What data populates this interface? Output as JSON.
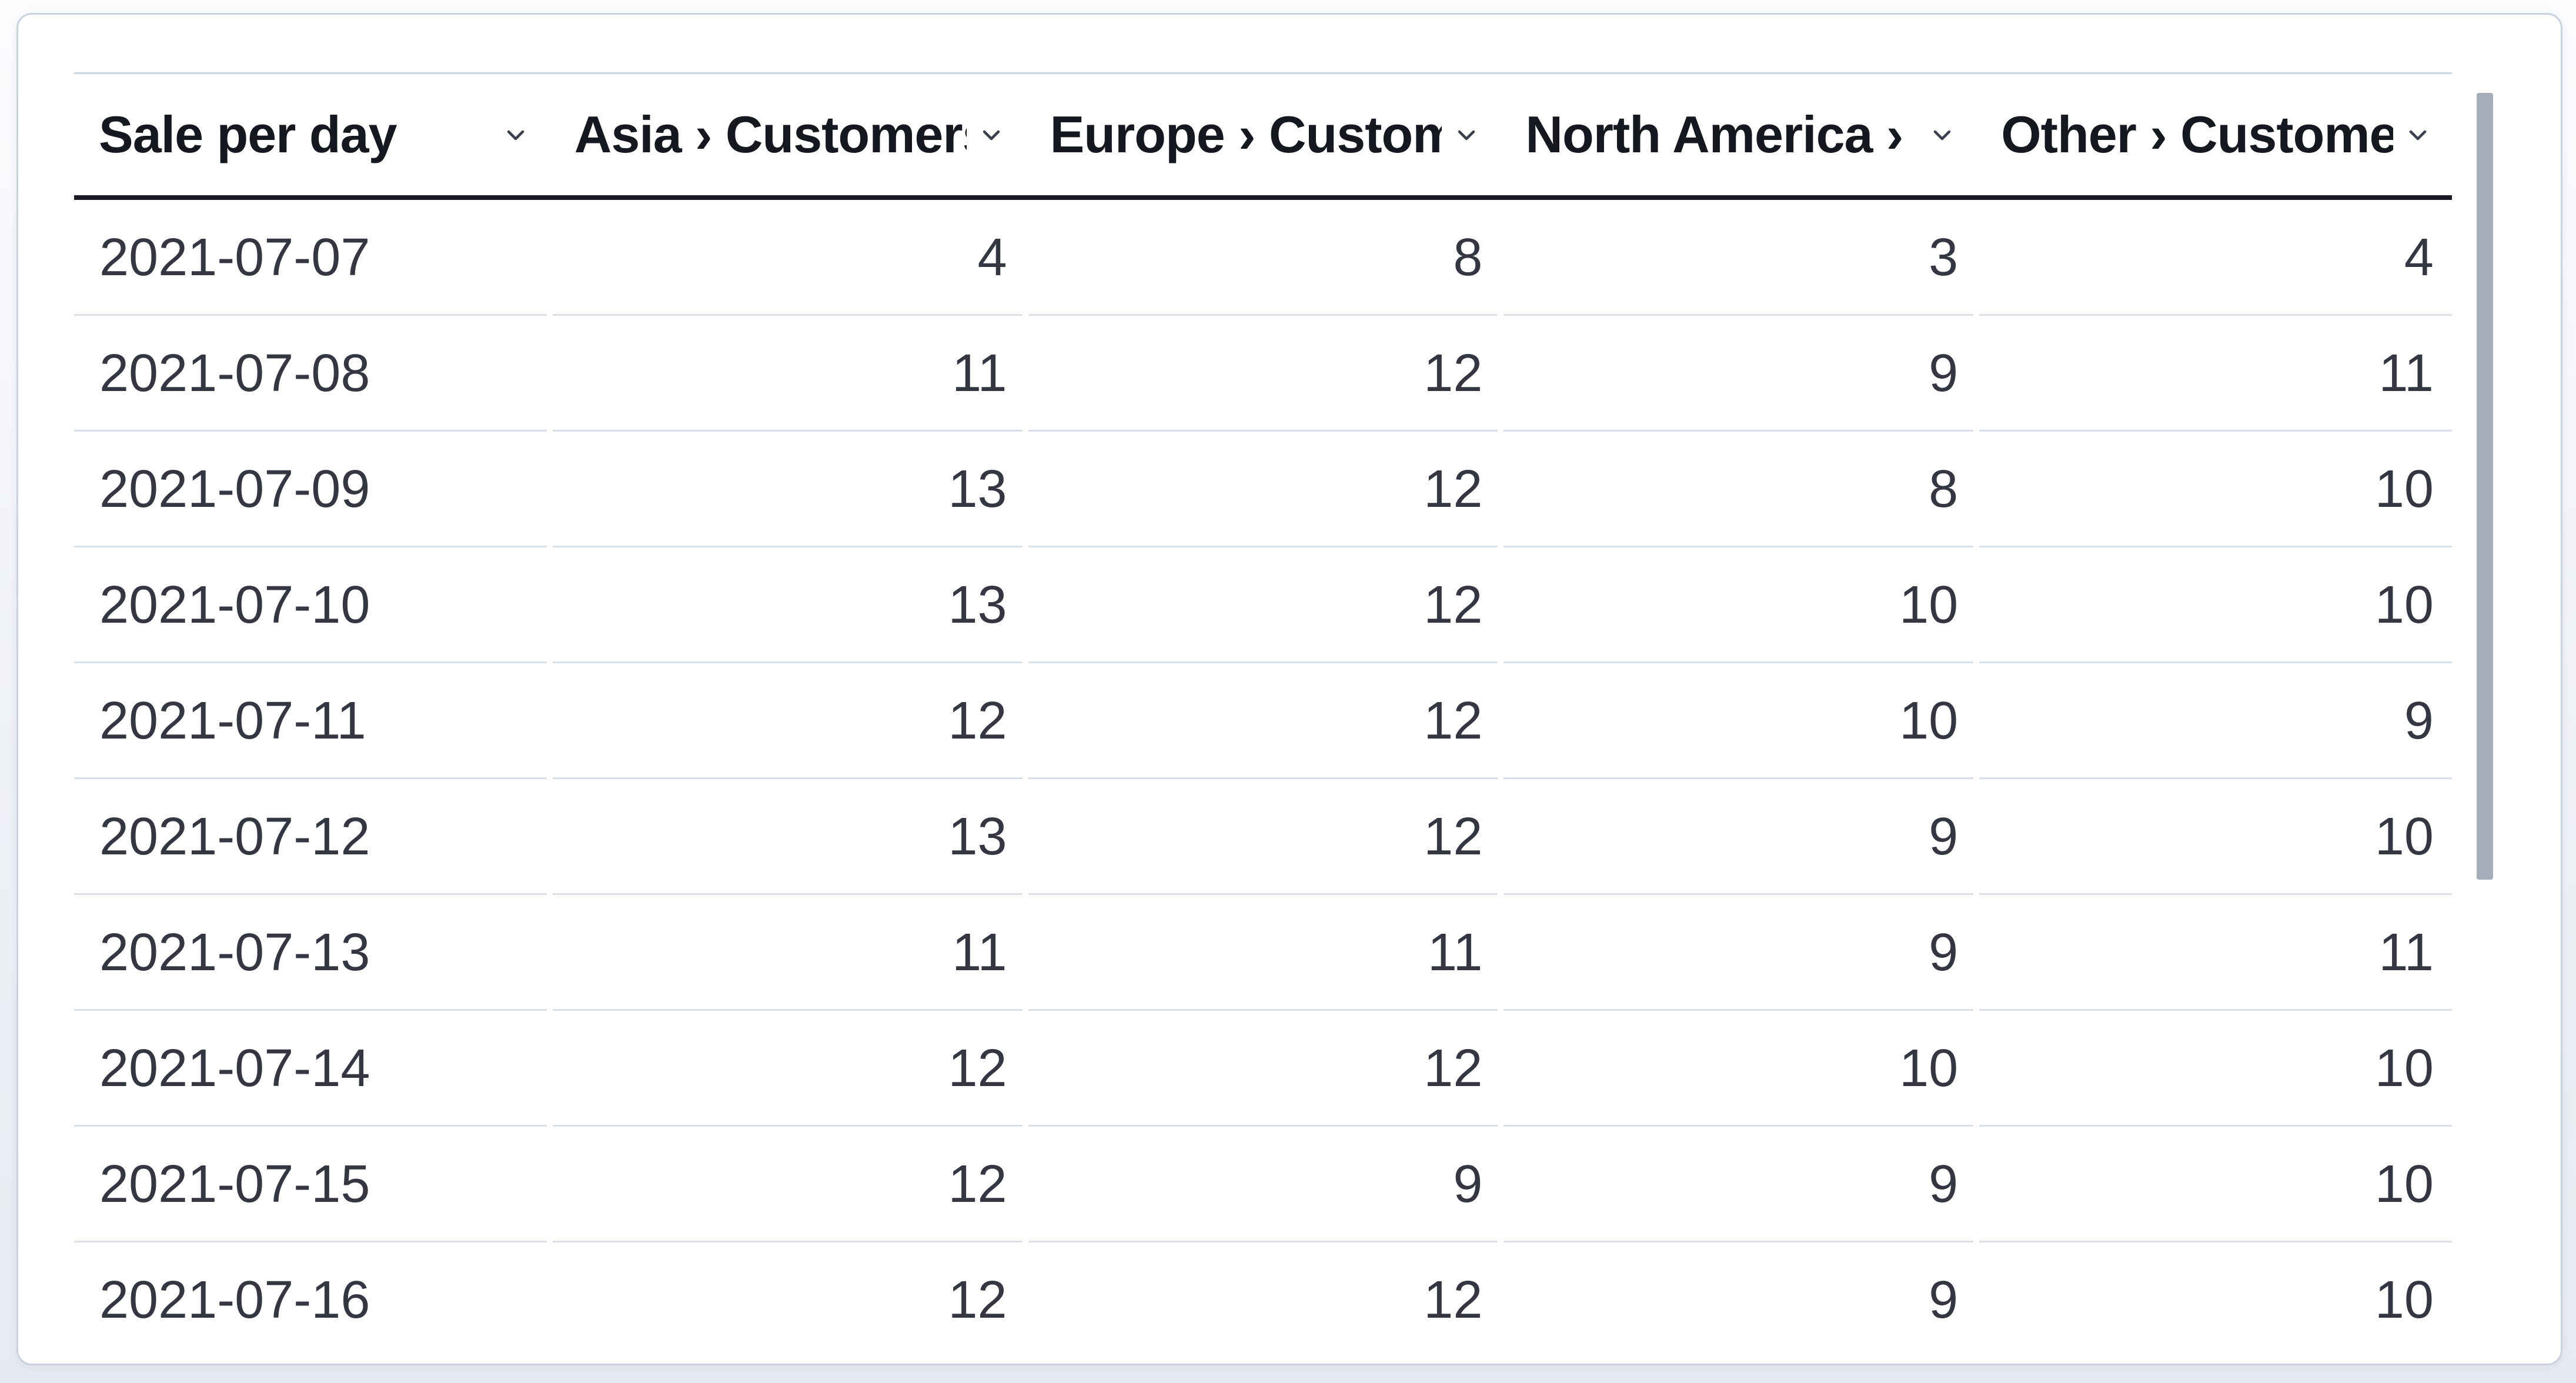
{
  "panel": {
    "kind": "data-table"
  },
  "table": {
    "columns": [
      {
        "label": "Sale per day",
        "align": "left"
      },
      {
        "label": "Asia › Customers",
        "align": "right"
      },
      {
        "label": "Europe › Customers",
        "align": "right"
      },
      {
        "label": "North America › Customers",
        "align": "right"
      },
      {
        "label": "Other › Customers",
        "align": "right"
      }
    ],
    "rows": [
      [
        "2021-07-07",
        "4",
        "8",
        "3",
        "4"
      ],
      [
        "2021-07-08",
        "11",
        "12",
        "9",
        "11"
      ],
      [
        "2021-07-09",
        "13",
        "12",
        "8",
        "10"
      ],
      [
        "2021-07-10",
        "13",
        "12",
        "10",
        "10"
      ],
      [
        "2021-07-11",
        "12",
        "12",
        "10",
        "9"
      ],
      [
        "2021-07-12",
        "13",
        "12",
        "9",
        "10"
      ],
      [
        "2021-07-13",
        "11",
        "11",
        "9",
        "11"
      ],
      [
        "2021-07-14",
        "12",
        "12",
        "10",
        "10"
      ],
      [
        "2021-07-15",
        "12",
        "9",
        "9",
        "10"
      ],
      [
        "2021-07-16",
        "12",
        "12",
        "9",
        "10"
      ]
    ]
  },
  "icons": {
    "column_menu": "chevron-down"
  },
  "colors": {
    "header_text": "#15181f",
    "cell_text": "#343741",
    "header_rule": "#191c22",
    "row_separator": "#d9dfe8",
    "table_top_border": "#ccd6e2",
    "card_border": "#c9d2df",
    "card_background": "#ffffff",
    "page_background": "#eef1f6",
    "scrollbar_thumb": "#a6adb9"
  }
}
